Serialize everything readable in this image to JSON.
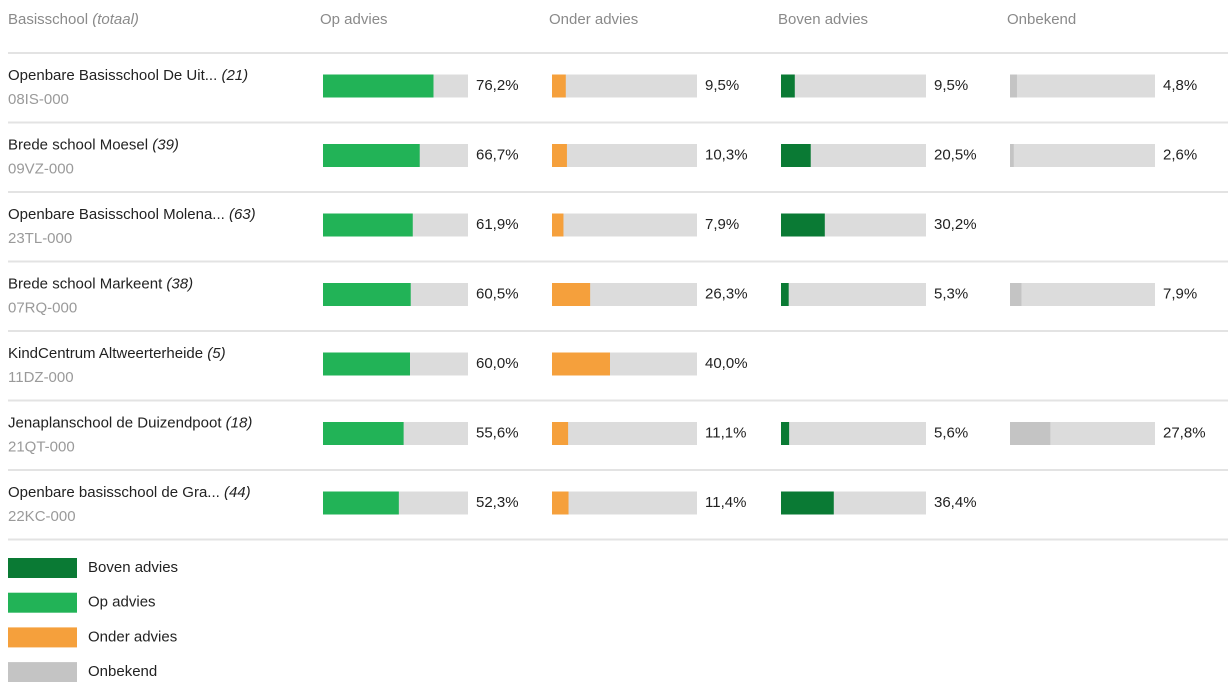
{
  "table": {
    "header": {
      "title": "Basisschool",
      "subtitle": "(totaal)"
    },
    "xlim": [
      0,
      100
    ],
    "columns": [
      {
        "name": "Op advies",
        "color": "#22b357"
      },
      {
        "name": "Onder advies",
        "color": "#f5a03c"
      },
      {
        "name": "Boven advies",
        "color": "#0a7a34"
      },
      {
        "name": "Onbekend",
        "color": "#c4c4c4"
      }
    ],
    "rows": [
      {
        "name": "Openbare Basisschool De Uit...",
        "count": "(21)",
        "code": "08IS-000",
        "values": [
          76.2,
          9.5,
          9.5,
          4.8
        ],
        "value_labels": [
          "76,2%",
          "9,5%",
          "9,5%",
          "4,8%"
        ]
      },
      {
        "name": "Brede school Moesel",
        "count": "(39)",
        "code": "09VZ-000",
        "values": [
          66.7,
          10.3,
          20.5,
          2.6
        ],
        "value_labels": [
          "66,7%",
          "10,3%",
          "20,5%",
          "2,6%"
        ]
      },
      {
        "name": "Openbare Basisschool Molena...",
        "count": "(63)",
        "code": "23TL-000",
        "values": [
          61.9,
          7.9,
          30.2,
          null
        ],
        "value_labels": [
          "61,9%",
          "7,9%",
          "30,2%",
          null
        ]
      },
      {
        "name": "Brede school Markeent",
        "count": "(38)",
        "code": "07RQ-000",
        "values": [
          60.5,
          26.3,
          5.3,
          7.9
        ],
        "value_labels": [
          "60,5%",
          "26,3%",
          "5,3%",
          "7,9%"
        ]
      },
      {
        "name": "KindCentrum Altweerterheide",
        "count": "(5)",
        "code": "11DZ-000",
        "values": [
          60.0,
          40.0,
          null,
          null
        ],
        "value_labels": [
          "60,0%",
          "40,0%",
          null,
          null
        ]
      },
      {
        "name": "Jenaplanschool de Duizendpoot",
        "count": "(18)",
        "code": "21QT-000",
        "values": [
          55.6,
          11.1,
          5.6,
          27.8
        ],
        "value_labels": [
          "55,6%",
          "11,1%",
          "5,6%",
          "27,8%"
        ]
      },
      {
        "name": "Openbare basisschool de Gra...",
        "count": "(44)",
        "code": "22KC-000",
        "values": [
          52.3,
          11.4,
          36.4,
          null
        ],
        "value_labels": [
          "52,3%",
          "11,4%",
          "36,4%",
          null
        ]
      }
    ],
    "legend": [
      "Boven advies",
      "Op advies",
      "Onder advies",
      "Onbekend"
    ]
  }
}
